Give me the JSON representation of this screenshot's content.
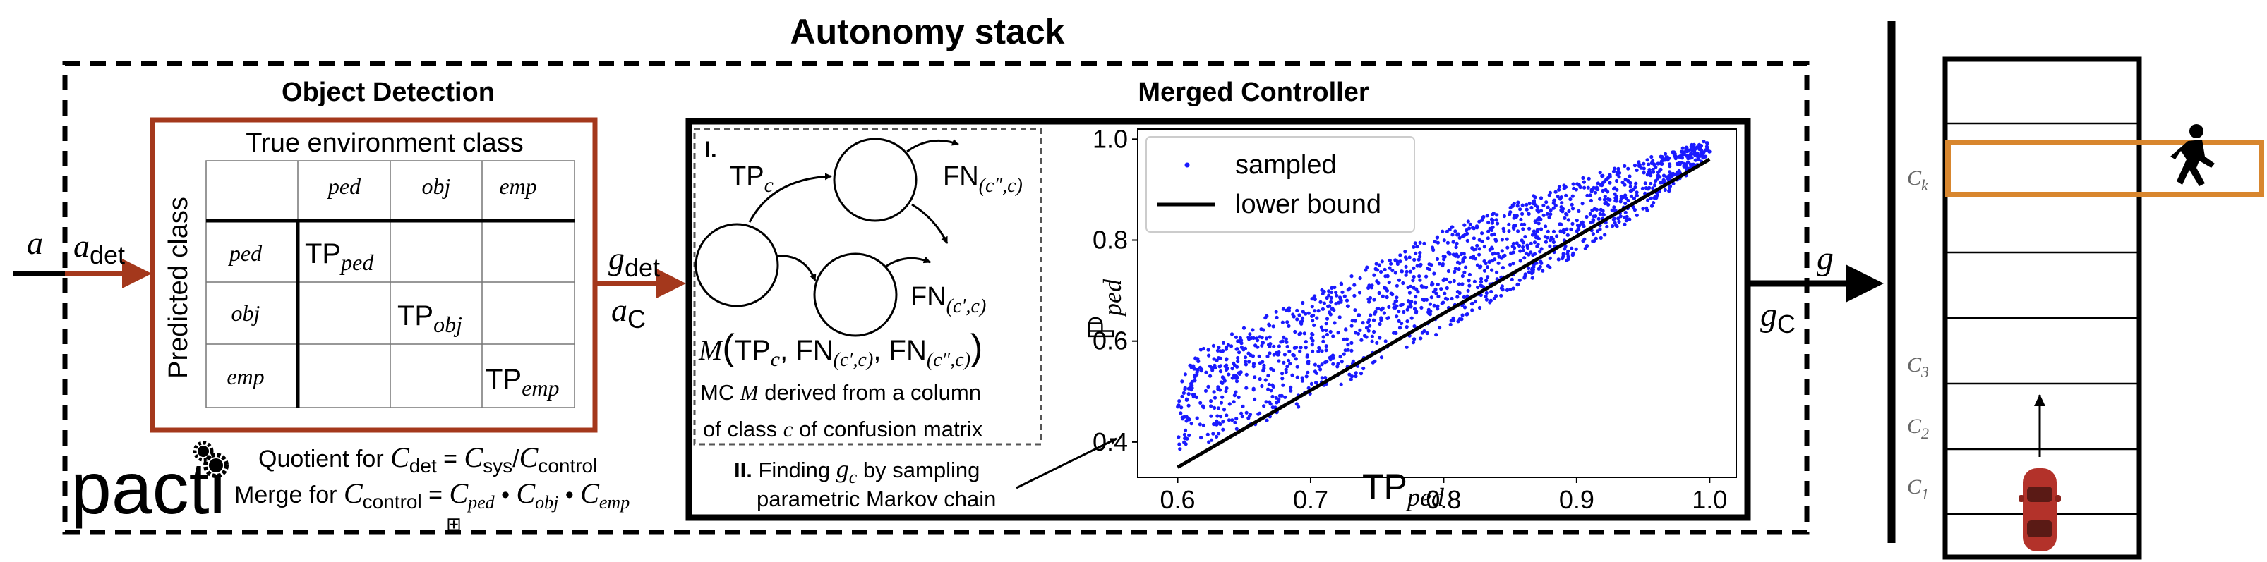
{
  "title": "Autonomy stack",
  "object_detection": {
    "heading": "Object Detection",
    "matrix": {
      "col_header": "True environment class",
      "row_header": "Predicted class",
      "columns": [
        "ped",
        "obj",
        "emp"
      ],
      "rows": [
        "ped",
        "obj",
        "emp"
      ],
      "tp_main": "TP",
      "tp_subs": [
        "ped",
        "obj",
        "emp"
      ]
    }
  },
  "signals": {
    "a": "a",
    "a_det_main": "a",
    "a_det_sub": "det",
    "g_det_main": "g",
    "g_det_sub": "det",
    "a_c_main": "a",
    "a_c_sub": "C",
    "g": "g",
    "g_c_main": "g",
    "g_c_sub": "C"
  },
  "pacti": {
    "logo": "pacti",
    "quotient_prefix": "Quotient for ",
    "quotient_lhs_main": "C",
    "quotient_lhs_sub": "det",
    "quotient_eq": " = ",
    "quotient_r1_main": "C",
    "quotient_r1_sub": "sys",
    "quotient_slash": "/",
    "quotient_r2_main": "C",
    "quotient_r2_sub": "control",
    "merge_prefix": "Merge for ",
    "merge_lhs_main": "C",
    "merge_lhs_sub": "control",
    "merge_eq": " = ",
    "merge_terms_main": [
      "C",
      "C",
      "C"
    ],
    "merge_terms_sub": [
      "ped",
      "obj",
      "emp"
    ],
    "merge_op": " • ",
    "merge_symbol": "⊞"
  },
  "merged_controller": {
    "heading": "Merged Controller",
    "markov": {
      "label": "I.",
      "tp_main": "TP",
      "tp_sub": "c",
      "fn1_main": "FN",
      "fn1_sub": "(c″,c)",
      "fn2_main": "FN",
      "fn2_sub": "(c′,c)",
      "model_m": "M",
      "model_open": "(",
      "model_tp": "TP",
      "model_tp_sub": "c",
      "model_comma": ", ",
      "model_fn": "FN",
      "model_fn1_sub": "(c′,c)",
      "model_fn2_sub": "(c″,c)",
      "model_close": ")",
      "caption_line1_pre": "MC ",
      "caption_line1_m": "M",
      "caption_line1_post": " derived from a column",
      "caption_line2_pre": "of class ",
      "caption_line2_c": "c",
      "caption_line2_post": " of confusion matrix"
    },
    "step2": {
      "label": "II.",
      "line1_pre": " Finding ",
      "line1_g": "g",
      "line1_gsub": "c",
      "line1_post": " by sampling",
      "line2": "parametric Markov chain"
    }
  },
  "road": {
    "lane_labels_main": [
      "C",
      "C",
      "C",
      "C"
    ],
    "lane_labels_sub": [
      "k",
      "3",
      "2",
      "1"
    ]
  },
  "colors": {
    "border_red": "#a4381c",
    "highlight_orange": "#d8862e",
    "arrow_red": "#a4381c",
    "scatter_blue": "#1a1aff",
    "car_red": "#b3322a"
  },
  "chart_data": {
    "type": "scatter",
    "xlabel_main": "TP",
    "xlabel_sub": "ped",
    "ylabel_main": "ℙ",
    "ylabel_sub": "ped",
    "xlim": [
      0.57,
      1.02
    ],
    "ylim": [
      0.33,
      1.02
    ],
    "xticks": [
      0.6,
      0.7,
      0.8,
      0.9,
      1.0
    ],
    "xtick_labels": [
      "0.6",
      "0.7",
      "0.8",
      "0.9",
      "1.0"
    ],
    "yticks": [
      0.4,
      0.6,
      0.8,
      1.0
    ],
    "ytick_labels": [
      "0.4",
      "0.6",
      "0.8",
      "1.0"
    ],
    "legend": [
      "sampled",
      "lower bound"
    ],
    "legend_position": "top-left",
    "grid": false,
    "lower_bound": {
      "x": [
        0.6,
        1.0
      ],
      "y": [
        0.35,
        0.96
      ]
    },
    "sampled_envelope": {
      "x": [
        0.6,
        0.65,
        0.7,
        0.75,
        0.8,
        0.85,
        0.9,
        0.95,
        1.0
      ],
      "upper": [
        0.56,
        0.63,
        0.69,
        0.76,
        0.82,
        0.87,
        0.92,
        0.96,
        1.0
      ],
      "lower": [
        0.38,
        0.42,
        0.48,
        0.55,
        0.62,
        0.7,
        0.77,
        0.85,
        0.97
      ]
    },
    "series": [
      {
        "name": "sampled",
        "kind": "points"
      },
      {
        "name": "lower bound",
        "kind": "line"
      }
    ]
  }
}
